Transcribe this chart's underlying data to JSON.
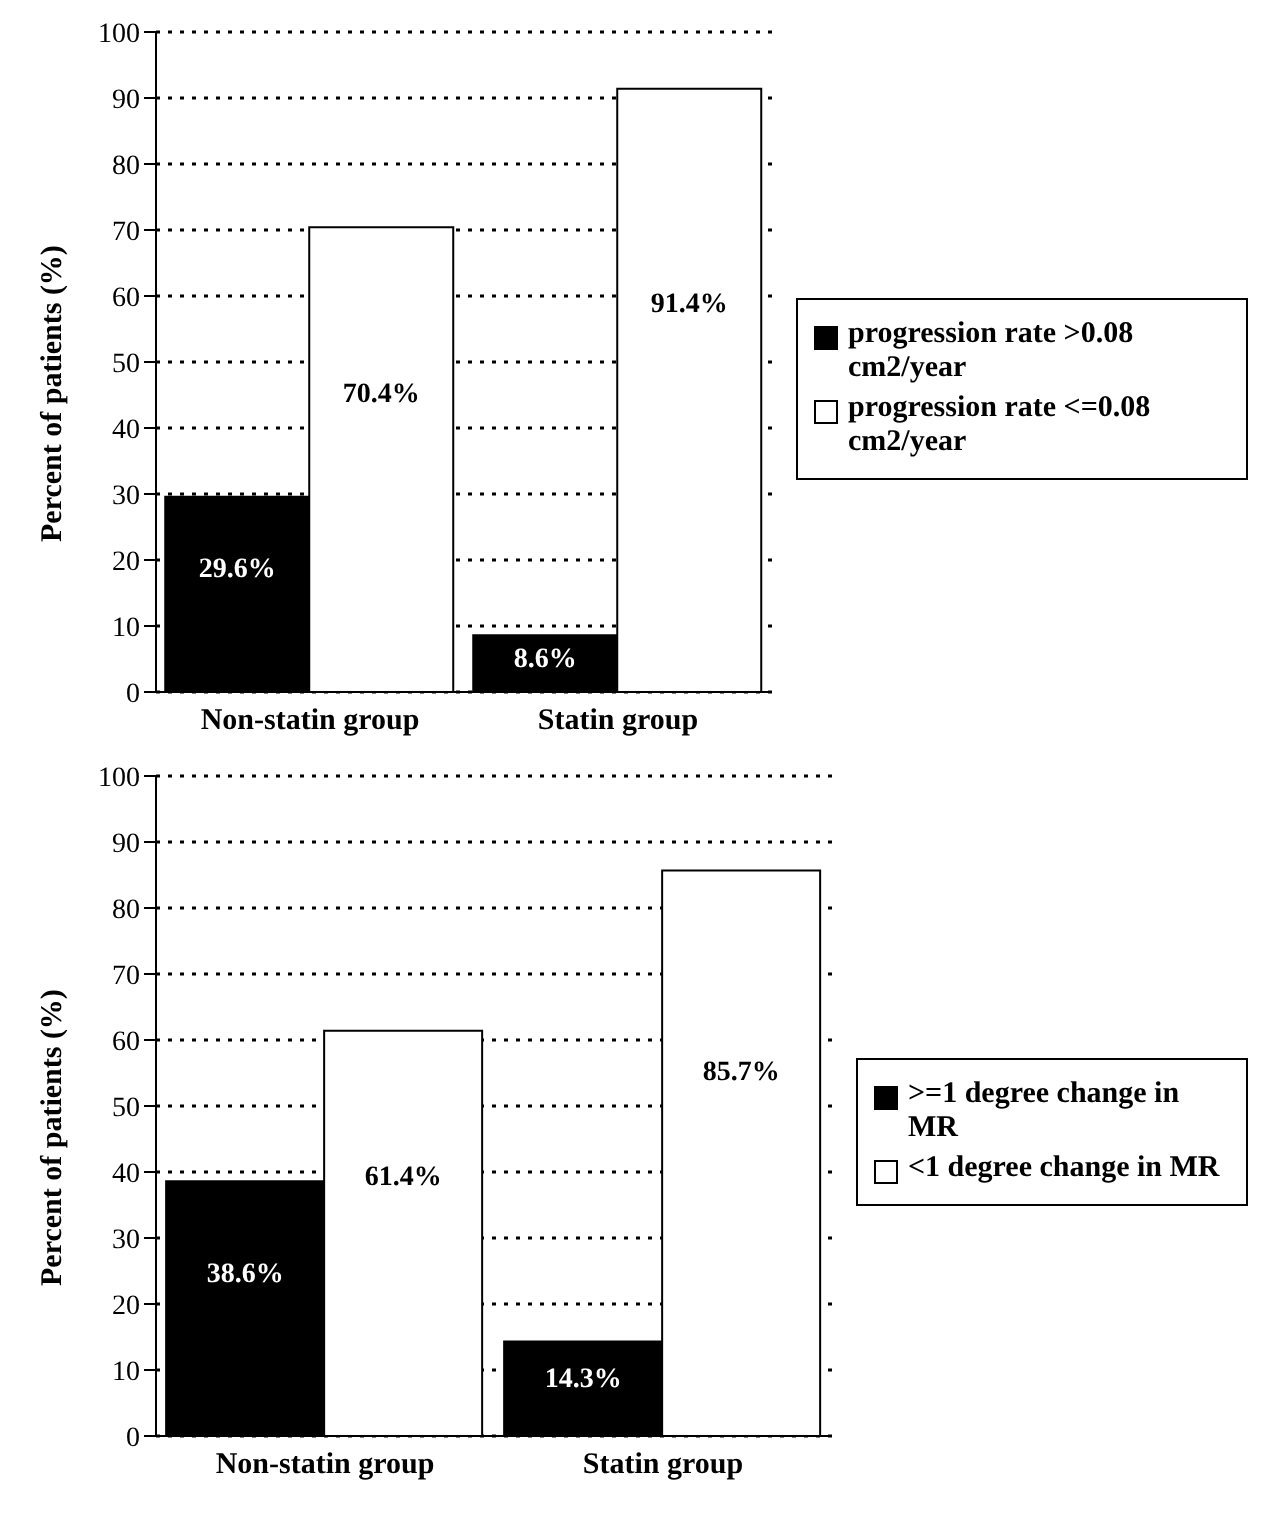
{
  "chart_data": [
    {
      "type": "bar",
      "ylabel": "Percent of patients (%)",
      "categories": [
        "Non-statin group",
        "Statin group"
      ],
      "series": [
        {
          "name": "progression rate >0.08 cm2/year",
          "color": "#000000",
          "values": [
            29.6,
            8.6
          ],
          "value_labels": [
            "29.6%",
            "8.6%"
          ]
        },
        {
          "name": "progression rate <=0.08 cm2/year",
          "color": "#ffffff",
          "values": [
            70.4,
            91.4
          ],
          "value_labels": [
            "70.4%",
            "91.4%"
          ]
        }
      ],
      "ylim": [
        0,
        100
      ],
      "yticks": [
        0,
        10,
        20,
        30,
        40,
        50,
        60,
        70,
        80,
        90,
        100
      ],
      "grid": "y",
      "legend": "right"
    },
    {
      "type": "bar",
      "ylabel": "Percent of patients (%)",
      "categories": [
        "Non-statin group",
        "Statin group"
      ],
      "series": [
        {
          "name": ">=1 degree change in MR",
          "color": "#000000",
          "values": [
            38.6,
            14.3
          ],
          "value_labels": [
            "38.6%",
            "14.3%"
          ]
        },
        {
          "name": "<1 degree change in MR",
          "color": "#ffffff",
          "values": [
            61.4,
            85.7
          ],
          "value_labels": [
            "61.4%",
            "85.7%"
          ]
        }
      ],
      "ylim": [
        0,
        100
      ],
      "yticks": [
        0,
        10,
        20,
        30,
        40,
        50,
        60,
        70,
        80,
        90,
        100
      ],
      "grid": "y",
      "legend": "right"
    }
  ]
}
